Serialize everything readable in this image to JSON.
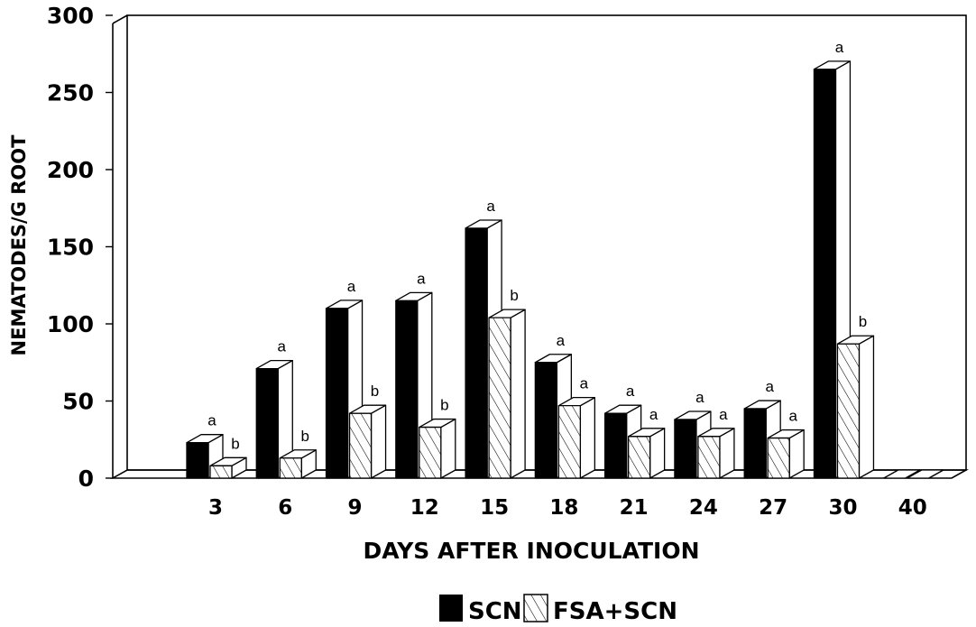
{
  "chart_data": {
    "type": "bar",
    "categories": [
      "3",
      "6",
      "9",
      "12",
      "15",
      "18",
      "21",
      "24",
      "27",
      "30",
      "40"
    ],
    "series": [
      {
        "name": "SCN",
        "color": "#000000",
        "pattern": "solid",
        "values": [
          23,
          71,
          110,
          115,
          162,
          75,
          42,
          38,
          45,
          265,
          0
        ],
        "labels": [
          "a",
          "a",
          "a",
          "a",
          "a",
          "a",
          "a",
          "a",
          "a",
          "a",
          ""
        ]
      },
      {
        "name": "FSA+SCN",
        "color": "#ffffff",
        "pattern": "diagonal-hatch",
        "values": [
          8,
          13,
          42,
          33,
          104,
          47,
          27,
          27,
          26,
          87,
          0
        ],
        "labels": [
          "b",
          "b",
          "b",
          "b",
          "b",
          "a",
          "a",
          "a",
          "a",
          "b",
          ""
        ]
      }
    ],
    "xlabel": "DAYS AFTER INOCULATION",
    "ylabel": "NEMATODES/G ROOT",
    "ylim": [
      0,
      300
    ],
    "yticks": [
      "0",
      "50",
      "100",
      "150",
      "200",
      "250",
      "300"
    ],
    "grid": false,
    "legend_position": "bottom-center",
    "style": "3d"
  }
}
